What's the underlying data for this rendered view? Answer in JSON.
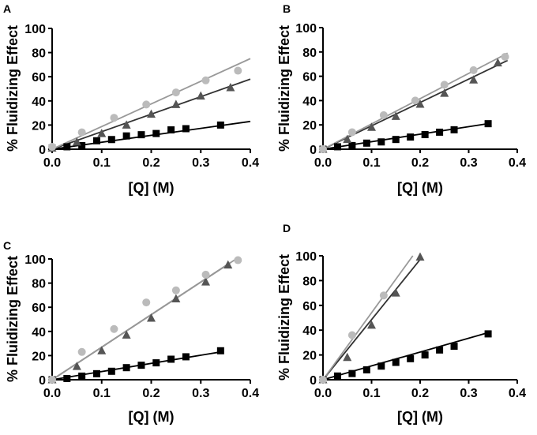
{
  "figure": {
    "background": "#ffffff"
  },
  "chart_data": [
    {
      "panel_label": "A",
      "type": "scatter",
      "ylabel": "% Fluidizing Effect",
      "xlabel": "[Q] (M)",
      "xlim": [
        0,
        0.4
      ],
      "ylim": [
        0,
        100
      ],
      "x_ticks": [
        "0.0",
        "0.1",
        "0.2",
        "0.3",
        "0.4"
      ],
      "y_ticks": [
        "0",
        "20",
        "40",
        "60",
        "80",
        "100"
      ],
      "series": [
        {
          "name": "squares",
          "marker": "square",
          "color": "#000000",
          "line_color": "#000000",
          "x": [
            0.0,
            0.03,
            0.06,
            0.09,
            0.12,
            0.15,
            0.18,
            0.21,
            0.24,
            0.27,
            0.34
          ],
          "y": [
            1,
            2,
            3,
            7,
            8,
            11,
            12,
            13,
            16,
            17,
            20
          ],
          "fit": [
            [
              0,
              0
            ],
            [
              0.4,
              23
            ]
          ]
        },
        {
          "name": "triangles",
          "marker": "triangle",
          "color": "#555555",
          "line_color": "#333333",
          "x": [
            0.0,
            0.05,
            0.1,
            0.15,
            0.2,
            0.25,
            0.3,
            0.36
          ],
          "y": [
            1,
            6,
            13,
            20,
            29,
            37,
            44,
            51
          ],
          "fit": [
            [
              0,
              0
            ],
            [
              0.4,
              58
            ]
          ]
        },
        {
          "name": "circles",
          "marker": "circle",
          "color": "#bbbbbb",
          "line_color": "#999999",
          "x": [
            0.0,
            0.06,
            0.125,
            0.19,
            0.25,
            0.31,
            0.375
          ],
          "y": [
            2,
            14,
            26,
            37,
            47,
            57,
            65
          ],
          "fit": [
            [
              0,
              0
            ],
            [
              0.4,
              75
            ]
          ]
        }
      ]
    },
    {
      "panel_label": "B",
      "type": "scatter",
      "ylabel": "% Fluidizing Effect",
      "xlabel": "[Q] (M)",
      "xlim": [
        0,
        0.4
      ],
      "ylim": [
        0,
        100
      ],
      "x_ticks": [
        "0.0",
        "0.1",
        "0.2",
        "0.3",
        "0.4"
      ],
      "y_ticks": [
        "0",
        "20",
        "40",
        "60",
        "80",
        "100"
      ],
      "series": [
        {
          "name": "squares",
          "marker": "square",
          "color": "#000000",
          "line_color": "#000000",
          "x": [
            0.0,
            0.03,
            0.06,
            0.09,
            0.12,
            0.15,
            0.18,
            0.21,
            0.24,
            0.27,
            0.34
          ],
          "y": [
            0,
            2,
            3,
            5,
            6,
            8,
            10,
            12,
            14,
            16,
            21
          ],
          "fit": [
            [
              0,
              0
            ],
            [
              0.34,
              21
            ]
          ]
        },
        {
          "name": "triangles",
          "marker": "triangle",
          "color": "#555555",
          "line_color": "#333333",
          "x": [
            0.0,
            0.05,
            0.1,
            0.15,
            0.2,
            0.25,
            0.31,
            0.36
          ],
          "y": [
            0,
            8,
            18,
            27,
            37,
            46,
            57,
            71
          ],
          "fit": [
            [
              0,
              0
            ],
            [
              0.38,
              73
            ]
          ]
        },
        {
          "name": "circles",
          "marker": "circle",
          "color": "#bbbbbb",
          "line_color": "#999999",
          "x": [
            0.0,
            0.06,
            0.125,
            0.19,
            0.25,
            0.31,
            0.375
          ],
          "y": [
            0,
            14,
            28,
            40,
            53,
            65,
            76
          ],
          "fit": [
            [
              0,
              0
            ],
            [
              0.38,
              79
            ]
          ]
        }
      ]
    },
    {
      "panel_label": "C",
      "type": "scatter",
      "ylabel": "% Fluidizing Effect",
      "xlabel": "[Q] (M)",
      "xlim": [
        0,
        0.4
      ],
      "ylim": [
        0,
        100
      ],
      "x_ticks": [
        "0.0",
        "0.1",
        "0.2",
        "0.3",
        "0.4"
      ],
      "y_ticks": [
        "0",
        "20",
        "40",
        "60",
        "80",
        "100"
      ],
      "series": [
        {
          "name": "squares",
          "marker": "square",
          "color": "#000000",
          "line_color": "#000000",
          "x": [
            0.0,
            0.03,
            0.06,
            0.09,
            0.12,
            0.15,
            0.18,
            0.21,
            0.24,
            0.27,
            0.34
          ],
          "y": [
            0,
            1,
            3,
            5,
            7,
            10,
            12,
            14,
            17,
            19,
            24
          ],
          "fit": [
            [
              0,
              0
            ],
            [
              0.34,
              23
            ]
          ]
        },
        {
          "name": "triangles",
          "marker": "triangle",
          "color": "#555555",
          "line_color": "#333333",
          "x": [
            0.0,
            0.05,
            0.1,
            0.15,
            0.2,
            0.25,
            0.31,
            0.355
          ],
          "y": [
            0,
            11,
            24,
            37,
            51,
            67,
            81,
            95
          ],
          "fit": [
            [
              0,
              0
            ],
            [
              0.36,
              97
            ]
          ]
        },
        {
          "name": "circles",
          "marker": "circle",
          "color": "#bbbbbb",
          "line_color": "#999999",
          "x": [
            0.0,
            0.06,
            0.125,
            0.19,
            0.25,
            0.31,
            0.375
          ],
          "y": [
            0,
            23,
            42,
            64,
            74,
            87,
            99
          ],
          "fit": [
            [
              0,
              0
            ],
            [
              0.375,
              101
            ]
          ]
        }
      ]
    },
    {
      "panel_label": "D",
      "type": "scatter",
      "ylabel": "% Fluidizing Effect",
      "xlabel": "[Q] (M)",
      "xlim": [
        0,
        0.4
      ],
      "ylim": [
        0,
        100
      ],
      "x_ticks": [
        "0.0",
        "0.1",
        "0.2",
        "0.3",
        "0.4"
      ],
      "y_ticks": [
        "0",
        "20",
        "40",
        "60",
        "80",
        "100"
      ],
      "series": [
        {
          "name": "squares",
          "marker": "square",
          "color": "#000000",
          "line_color": "#000000",
          "x": [
            0.0,
            0.03,
            0.06,
            0.09,
            0.12,
            0.15,
            0.18,
            0.21,
            0.24,
            0.27,
            0.34
          ],
          "y": [
            0,
            3,
            5,
            8,
            11,
            14,
            17,
            20,
            24,
            27,
            37
          ],
          "fit": [
            [
              0,
              0
            ],
            [
              0.34,
              38
            ]
          ]
        },
        {
          "name": "triangles",
          "marker": "triangle",
          "color": "#555555",
          "line_color": "#333333",
          "x": [
            0.0,
            0.05,
            0.1,
            0.15,
            0.2
          ],
          "y": [
            0,
            18,
            44,
            70,
            99
          ],
          "fit": [
            [
              0,
              0
            ],
            [
              0.2,
              97
            ]
          ]
        },
        {
          "name": "circles",
          "marker": "circle",
          "color": "#bbbbbb",
          "line_color": "#999999",
          "x": [
            0.0,
            0.06,
            0.125
          ],
          "y": [
            0,
            36,
            68
          ],
          "fit": [
            [
              0,
              0
            ],
            [
              0.185,
              100
            ]
          ]
        }
      ]
    }
  ]
}
